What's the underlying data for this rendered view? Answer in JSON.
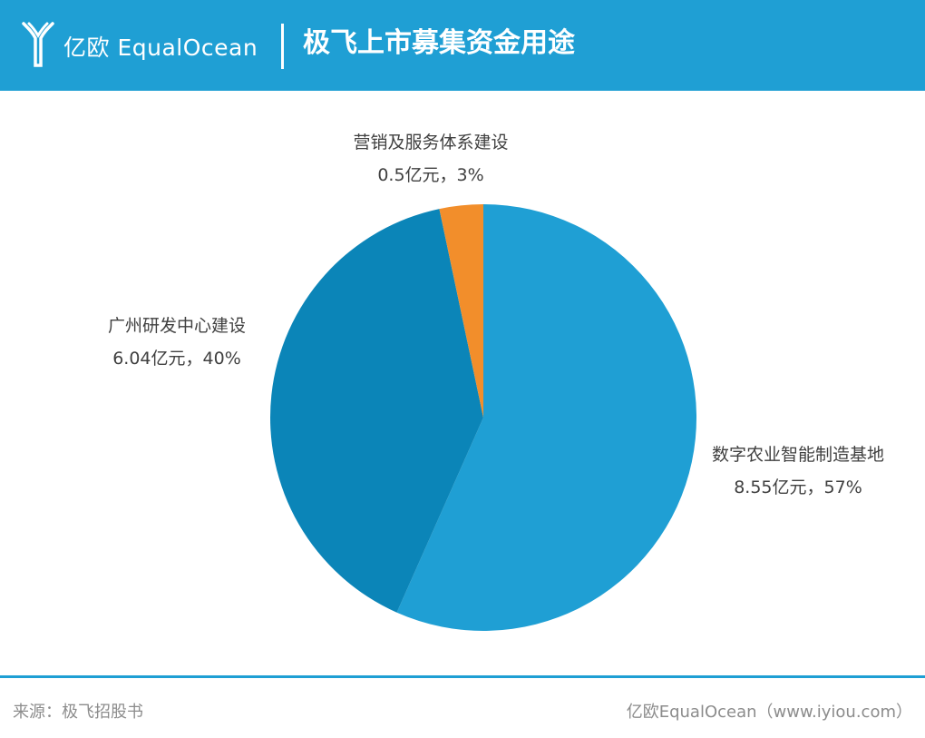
{
  "header": {
    "brand": "亿欧 EqualOcean",
    "title": "极飞上市募集资金用途",
    "background_color": "#1f9fd4"
  },
  "chart_data": {
    "type": "pie",
    "title": "极飞上市募集资金用途",
    "unit": "亿元",
    "slices": [
      {
        "name": "数字农业智能制造基地",
        "value": 8.55,
        "percent": 57,
        "label": "8.55亿元，57%",
        "color": "#1f9fd4"
      },
      {
        "name": "广州研发中心建设",
        "value": 6.04,
        "percent": 40,
        "label": "6.04亿元，40%",
        "color": "#0b85b8"
      },
      {
        "name": "营销及服务体系建设",
        "value": 0.5,
        "percent": 3,
        "label": "0.5亿元，3%",
        "color": "#f28e2b"
      }
    ],
    "start": "top",
    "direction": "clockwise"
  },
  "footer": {
    "source": "来源：极飞招股书",
    "credit": "亿欧EqualOcean（www.iyiou.com）"
  }
}
